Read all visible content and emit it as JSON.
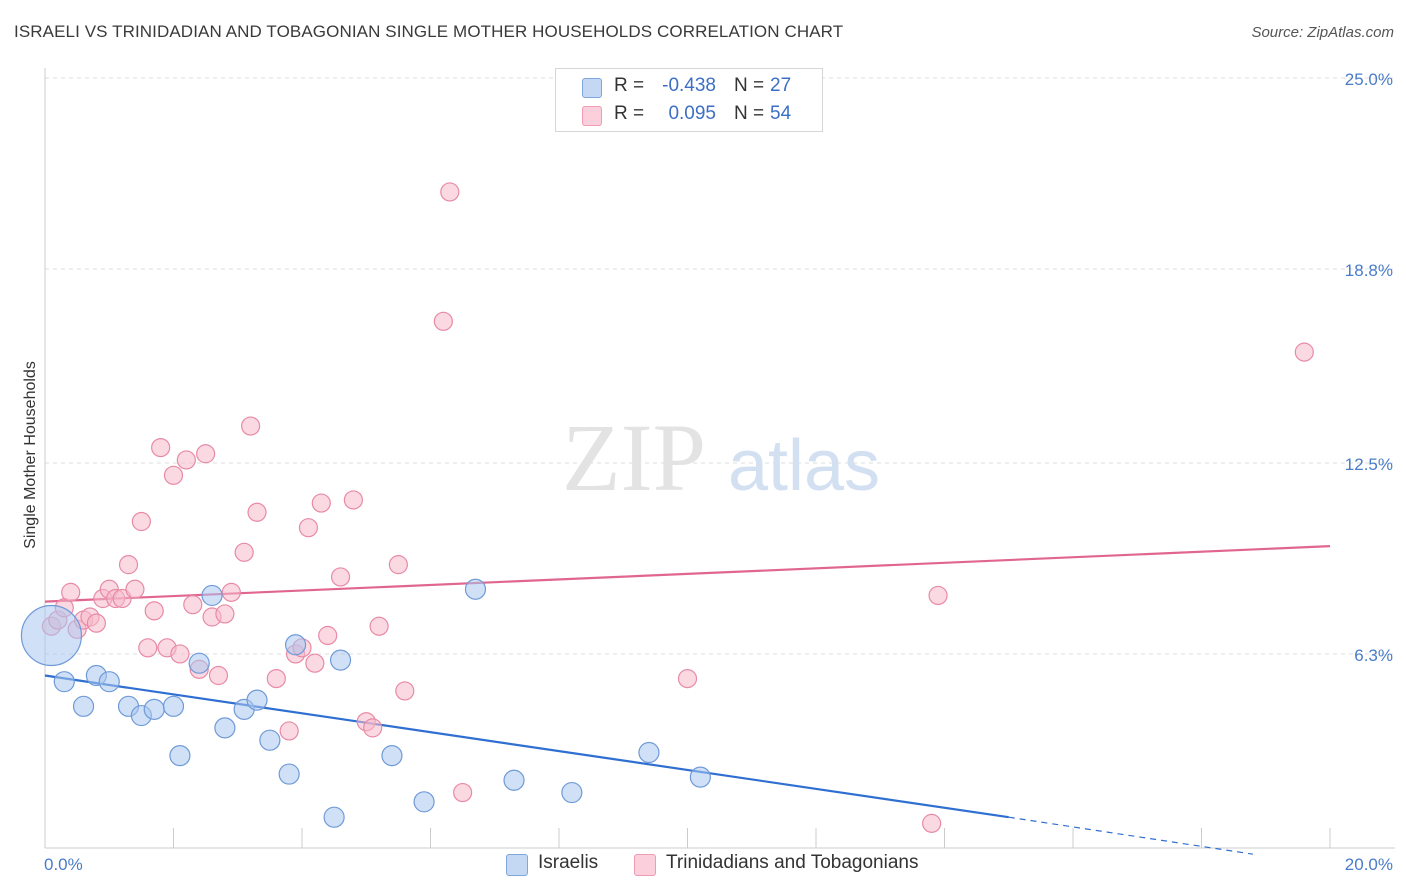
{
  "header": {
    "title": "ISRAELI VS TRINIDADIAN AND TOBAGONIAN SINGLE MOTHER HOUSEHOLDS CORRELATION CHART",
    "source": "Source: ZipAtlas.com"
  },
  "watermark": {
    "zip": "ZIP",
    "atlas": "atlas"
  },
  "legend": {
    "rows": [
      {
        "r_label": "R =",
        "r_value": "-0.438",
        "n_label": "N =",
        "n_value": "27",
        "color": "#a9c6ee"
      },
      {
        "r_label": "R =",
        "r_value": "0.095",
        "n_label": "N =",
        "n_value": "54",
        "color": "#f6b9cb"
      }
    ]
  },
  "bottom_legend": {
    "items": [
      {
        "label": "Israelis",
        "color": "#a9c6ee"
      },
      {
        "label": "Trinidadians and Tobagonians",
        "color": "#f6b9cb"
      }
    ]
  },
  "chart_data": {
    "type": "scatter",
    "title": "ISRAELI VS TRINIDADIAN AND TOBAGONIAN SINGLE MOTHER HOUSEHOLDS CORRELATION CHART",
    "xlabel": "",
    "ylabel": "Single Mother Households",
    "xlim": [
      0,
      20
    ],
    "ylim": [
      0,
      25
    ],
    "x_tick_labels": [
      "0.0%",
      "20.0%"
    ],
    "y_ticks": [
      6.3,
      12.5,
      18.8,
      25.0
    ],
    "y_tick_labels": [
      "6.3%",
      "12.5%",
      "18.8%",
      "25.0%"
    ],
    "grid": "horizontal dashed",
    "legend_position": "top-center",
    "series": [
      {
        "name": "Israelis",
        "color": "#a9c6ee",
        "stroke": "#6f9ad8",
        "trend_color": "#2f6fd1",
        "trend": {
          "x": [
            0,
            15.0
          ],
          "y": [
            5.6,
            1.0
          ],
          "dashed_to": [
            18.8,
            -0.2
          ]
        },
        "points": [
          [
            0.1,
            6.9
          ],
          [
            0.3,
            5.4
          ],
          [
            0.6,
            4.6
          ],
          [
            0.8,
            5.6
          ],
          [
            1.0,
            5.4
          ],
          [
            1.3,
            4.6
          ],
          [
            1.5,
            4.3
          ],
          [
            1.7,
            4.5
          ],
          [
            2.0,
            4.6
          ],
          [
            2.1,
            3.0
          ],
          [
            2.4,
            6.0
          ],
          [
            2.6,
            8.2
          ],
          [
            2.8,
            3.9
          ],
          [
            3.1,
            4.5
          ],
          [
            3.3,
            4.8
          ],
          [
            3.5,
            3.5
          ],
          [
            3.8,
            2.4
          ],
          [
            3.9,
            6.6
          ],
          [
            4.5,
            1.0
          ],
          [
            4.6,
            6.1
          ],
          [
            5.4,
            3.0
          ],
          [
            5.9,
            1.5
          ],
          [
            6.7,
            8.4
          ],
          [
            7.3,
            2.2
          ],
          [
            8.2,
            1.8
          ],
          [
            9.4,
            3.1
          ],
          [
            10.2,
            2.3
          ]
        ],
        "sizes": [
          30,
          10,
          10,
          10,
          10,
          10,
          10,
          10,
          10,
          10,
          10,
          10,
          10,
          10,
          10,
          10,
          10,
          10,
          10,
          10,
          10,
          10,
          10,
          10,
          10,
          10,
          10
        ]
      },
      {
        "name": "Trinidadians and Tobagonians",
        "color": "#f6b9cb",
        "stroke": "#e88aa6",
        "trend_color": "#e0668f",
        "trend": {
          "x": [
            0,
            20
          ],
          "y": [
            8.0,
            9.8
          ]
        },
        "points": [
          [
            0.1,
            7.2
          ],
          [
            0.2,
            7.4
          ],
          [
            0.3,
            7.8
          ],
          [
            0.4,
            8.3
          ],
          [
            0.5,
            7.1
          ],
          [
            0.6,
            7.4
          ],
          [
            0.7,
            7.5
          ],
          [
            0.8,
            7.3
          ],
          [
            0.9,
            8.1
          ],
          [
            1.0,
            8.4
          ],
          [
            1.1,
            8.1
          ],
          [
            1.2,
            8.1
          ],
          [
            1.3,
            9.2
          ],
          [
            1.4,
            8.4
          ],
          [
            1.5,
            10.6
          ],
          [
            1.6,
            6.5
          ],
          [
            1.7,
            7.7
          ],
          [
            1.8,
            13.0
          ],
          [
            1.9,
            6.5
          ],
          [
            2.0,
            12.1
          ],
          [
            2.1,
            6.3
          ],
          [
            2.2,
            12.6
          ],
          [
            2.3,
            7.9
          ],
          [
            2.4,
            5.8
          ],
          [
            2.5,
            12.8
          ],
          [
            2.6,
            7.5
          ],
          [
            2.7,
            5.6
          ],
          [
            2.8,
            7.6
          ],
          [
            2.9,
            8.3
          ],
          [
            3.1,
            9.6
          ],
          [
            3.2,
            13.7
          ],
          [
            3.3,
            10.9
          ],
          [
            3.6,
            5.5
          ],
          [
            3.8,
            3.8
          ],
          [
            3.9,
            6.3
          ],
          [
            4.0,
            6.5
          ],
          [
            4.1,
            10.4
          ],
          [
            4.2,
            6.0
          ],
          [
            4.3,
            11.2
          ],
          [
            4.4,
            6.9
          ],
          [
            4.6,
            8.8
          ],
          [
            4.8,
            11.3
          ],
          [
            5.0,
            4.1
          ],
          [
            5.1,
            3.9
          ],
          [
            5.2,
            7.2
          ],
          [
            5.5,
            9.2
          ],
          [
            5.6,
            5.1
          ],
          [
            6.2,
            17.1
          ],
          [
            6.3,
            21.3
          ],
          [
            6.5,
            1.8
          ],
          [
            10.0,
            5.5
          ],
          [
            13.8,
            0.8
          ],
          [
            13.9,
            8.2
          ],
          [
            19.6,
            16.1
          ]
        ]
      }
    ]
  }
}
